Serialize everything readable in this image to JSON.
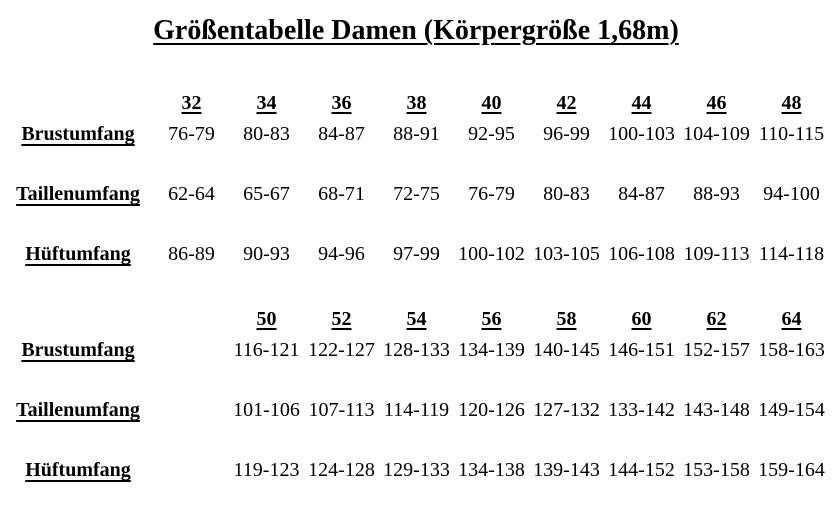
{
  "page": {
    "title": "Größentabelle Damen (Körpergröße 1,68m)"
  },
  "chart_data": {
    "type": "table",
    "title": "Größentabelle Damen (Körpergröße 1,68m)",
    "row_labels": [
      "Brustumfang",
      "Taillenumfang",
      "Hüftumfang"
    ],
    "sections": [
      {
        "sizes": [
          "32",
          "34",
          "36",
          "38",
          "40",
          "42",
          "44",
          "46",
          "48"
        ],
        "rows": [
          {
            "label": "Brustumfang",
            "values": [
              "76-79",
              "80-83",
              "84-87",
              "88-91",
              "92-95",
              "96-99",
              "100-103",
              "104-109",
              "110-115"
            ]
          },
          {
            "label": "Taillenumfang",
            "values": [
              "62-64",
              "65-67",
              "68-71",
              "72-75",
              "76-79",
              "80-83",
              "84-87",
              "88-93",
              "94-100"
            ]
          },
          {
            "label": "Hüftumfang",
            "values": [
              "86-89",
              "90-93",
              "94-96",
              "97-99",
              "100-102",
              "103-105",
              "106-108",
              "109-113",
              "114-118"
            ]
          }
        ]
      },
      {
        "sizes": [
          "50",
          "52",
          "54",
          "56",
          "58",
          "60",
          "62",
          "64"
        ],
        "rows": [
          {
            "label": "Brustumfang",
            "values": [
              "116-121",
              "122-127",
              "128-133",
              "134-139",
              "140-145",
              "146-151",
              "152-157",
              "158-163"
            ]
          },
          {
            "label": "Taillenumfang",
            "values": [
              "101-106",
              "107-113",
              "114-119",
              "120-126",
              "127-132",
              "133-142",
              "143-148",
              "149-154"
            ]
          },
          {
            "label": "Hüftumfang",
            "values": [
              "119-123",
              "124-128",
              "129-133",
              "134-138",
              "139-143",
              "144-152",
              "153-158",
              "159-164"
            ]
          }
        ]
      }
    ]
  }
}
